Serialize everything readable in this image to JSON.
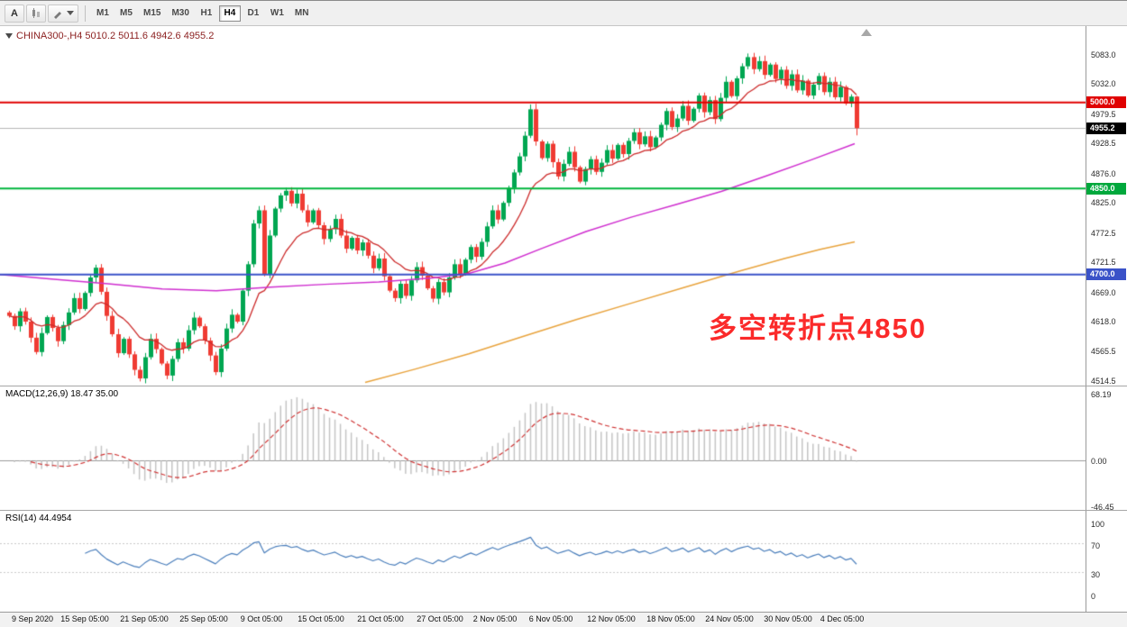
{
  "toolbar": {
    "cursor_label": "A",
    "timeframes": [
      {
        "label": "M1",
        "active": false
      },
      {
        "label": "M5",
        "active": false
      },
      {
        "label": "M15",
        "active": false
      },
      {
        "label": "M30",
        "active": false
      },
      {
        "label": "H1",
        "active": false
      },
      {
        "label": "H4",
        "active": true
      },
      {
        "label": "D1",
        "active": false
      },
      {
        "label": "W1",
        "active": false
      },
      {
        "label": "MN",
        "active": false
      }
    ]
  },
  "chart": {
    "header": "CHINA300-,H4 5010.2 5011.6 4942.6 4955.2",
    "annotation": {
      "text": "多空转折点4850",
      "color": "#fb2a2a"
    },
    "tags": [
      {
        "label": "5000.0",
        "price": 5000.0,
        "color": "#e00000"
      },
      {
        "label": "4955.2",
        "price": 4955.2,
        "color": "#000000"
      },
      {
        "label": "4850.0",
        "price": 4850.0,
        "color": "#00a83c"
      },
      {
        "label": "4700.0",
        "price": 4700.0,
        "color": "#3a52c8"
      }
    ],
    "y_ticks": [
      "5083.0",
      "5032.0",
      "4979.5",
      "4928.5",
      "4876.0",
      "4825.0",
      "4772.5",
      "4721.5",
      "4669.0",
      "4618.0",
      "4565.5",
      "4514.5"
    ],
    "x_ticks": [
      {
        "label": "9 Sep 2020",
        "x": 36
      },
      {
        "label": "15 Sep 05:00",
        "x": 94
      },
      {
        "label": "21 Sep 05:00",
        "x": 160
      },
      {
        "label": "25 Sep 05:00",
        "x": 226
      },
      {
        "label": "9 Oct 05:00",
        "x": 290
      },
      {
        "label": "15 Oct 05:00",
        "x": 356
      },
      {
        "label": "21 Oct 05:00",
        "x": 422
      },
      {
        "label": "27 Oct 05:00",
        "x": 488
      },
      {
        "label": "2 Nov 05:00",
        "x": 549
      },
      {
        "label": "6 Nov 05:00",
        "x": 611
      },
      {
        "label": "12 Nov 05:00",
        "x": 678
      },
      {
        "label": "18 Nov 05:00",
        "x": 744
      },
      {
        "label": "24 Nov 05:00",
        "x": 809
      },
      {
        "label": "30 Nov 05:00",
        "x": 874
      },
      {
        "label": "4 Dec 05:00",
        "x": 934
      }
    ]
  },
  "chart_data": {
    "type": "candlestick",
    "symbol": "CHINA300-",
    "timeframe": "H4",
    "last_ohlc": {
      "open": 5010.2,
      "high": 5011.6,
      "low": 4942.6,
      "close": 4955.2
    },
    "price_axis": {
      "min": 4505,
      "max": 5133
    },
    "up_color": "#00a651",
    "down_color": "#ef3b33",
    "closes": [
      4628,
      4610,
      4636,
      4618,
      4590,
      4565,
      4598,
      4626,
      4607,
      4584,
      4612,
      4634,
      4659,
      4640,
      4668,
      4695,
      4712,
      4670,
      4628,
      4596,
      4563,
      4588,
      4561,
      4534,
      4519,
      4556,
      4588,
      4570,
      4545,
      4524,
      4553,
      4582,
      4571,
      4603,
      4625,
      4610,
      4585,
      4559,
      4530,
      4571,
      4606,
      4630,
      4618,
      4672,
      4718,
      4789,
      4812,
      4701,
      4768,
      4815,
      4838,
      4846,
      4824,
      4841,
      4812,
      4791,
      4812,
      4786,
      4762,
      4779,
      4797,
      4768,
      4745,
      4764,
      4742,
      4756,
      4733,
      4711,
      4728,
      4697,
      4672,
      4659,
      4684,
      4663,
      4690,
      4713,
      4698,
      4676,
      4658,
      4687,
      4669,
      4695,
      4718,
      4701,
      4726,
      4748,
      4731,
      4757,
      4784,
      4812,
      4796,
      4825,
      4851,
      4878,
      4906,
      4942,
      4988,
      4932,
      4903,
      4928,
      4896,
      4871,
      4893,
      4914,
      4887,
      4862,
      4884,
      4901,
      4879,
      4895,
      4917,
      4902,
      4926,
      4910,
      4933,
      4948,
      4927,
      4941,
      4922,
      4939,
      4961,
      4985,
      4957,
      4972,
      4994,
      4968,
      4989,
      5012,
      4983,
      5004,
      4971,
      5008,
      5036,
      5011,
      5042,
      5063,
      5079,
      5058,
      5072,
      5048,
      5066,
      5041,
      5057,
      5029,
      5049,
      5021,
      5038,
      5012,
      5031,
      5046,
      5018,
      5036,
      5009,
      5027,
      4998,
      5010.2,
      4955.2
    ],
    "levels": [
      {
        "price": 5000,
        "color": "#e00000"
      },
      {
        "price": 4850,
        "color": "#00b43c"
      },
      {
        "price": 4700,
        "color": "#3a52c8"
      }
    ],
    "current_price_line": {
      "price": 4955.2,
      "color": "#b5b5b5"
    },
    "ma_fast": {
      "period": 13,
      "color": "#cc2a2a"
    },
    "ma_mid": {
      "color": "#cf2ecf",
      "points": [
        [
          0,
          4700
        ],
        [
          60,
          4692
        ],
        [
          120,
          4684
        ],
        [
          180,
          4675
        ],
        [
          240,
          4672
        ],
        [
          300,
          4678
        ],
        [
          360,
          4683
        ],
        [
          420,
          4687
        ],
        [
          480,
          4694
        ],
        [
          520,
          4702
        ],
        [
          560,
          4720
        ],
        [
          600,
          4745
        ],
        [
          650,
          4775
        ],
        [
          700,
          4800
        ],
        [
          750,
          4822
        ],
        [
          800,
          4845
        ],
        [
          850,
          4872
        ],
        [
          900,
          4900
        ],
        [
          948,
          4928
        ]
      ]
    },
    "ma_slow": {
      "color": "#e8a33d",
      "points": [
        [
          405,
          4512
        ],
        [
          460,
          4535
        ],
        [
          520,
          4562
        ],
        [
          580,
          4592
        ],
        [
          640,
          4622
        ],
        [
          700,
          4650
        ],
        [
          760,
          4678
        ],
        [
          820,
          4706
        ],
        [
          870,
          4728
        ],
        [
          910,
          4744
        ],
        [
          948,
          4757
        ]
      ]
    },
    "macd": {
      "label": "MACD(12,26,9) 18.47 35.00",
      "fast": 12,
      "slow": 26,
      "signal": 9,
      "main_value": 18.47,
      "signal_value": 35.0,
      "axis": {
        "min": -46.45,
        "max": 68.19
      },
      "ticks": [
        "68.19",
        "0.00",
        "-46.45"
      ],
      "histogram_color": "#c4c4c4",
      "signal_color": "#cf3333"
    },
    "rsi": {
      "label": "RSI(14) 44.4954",
      "period": 14,
      "value": 44.4954,
      "axis": {
        "min": 0,
        "max": 100
      },
      "ticks": [
        "100",
        "70",
        "30",
        "0"
      ],
      "levels": [
        70,
        30
      ],
      "color": "#4a7ebb"
    }
  }
}
